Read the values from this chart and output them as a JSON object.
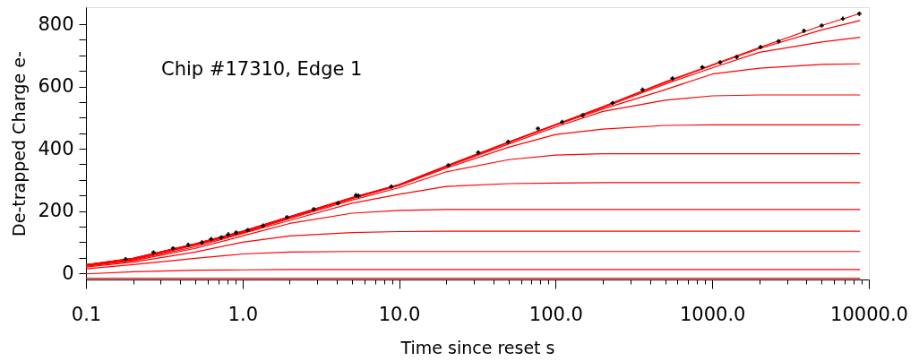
{
  "chart_data": {
    "type": "line",
    "xlabel": "Time since reset s",
    "ylabel": "De-trapped Charge e-",
    "annotations": [
      "Chip #17310, Edge 1"
    ],
    "log": "x",
    "grid": false,
    "xlim": [
      0.1,
      10000
    ],
    "ylim": [
      -20,
      855
    ],
    "xticks": [
      {
        "value": 0.1,
        "label": "0.1"
      },
      {
        "value": 0.2,
        "label": null
      },
      {
        "value": 0.3,
        "label": null
      },
      {
        "value": 0.4,
        "label": null
      },
      {
        "value": 0.5,
        "label": null
      },
      {
        "value": 0.6,
        "label": null
      },
      {
        "value": 0.7,
        "label": null
      },
      {
        "value": 0.8,
        "label": null
      },
      {
        "value": 0.9,
        "label": null
      },
      {
        "value": 1,
        "label": "1.0"
      },
      {
        "value": 2,
        "label": null
      },
      {
        "value": 3,
        "label": null
      },
      {
        "value": 4,
        "label": null
      },
      {
        "value": 5,
        "label": null
      },
      {
        "value": 6,
        "label": null
      },
      {
        "value": 7,
        "label": null
      },
      {
        "value": 8,
        "label": null
      },
      {
        "value": 9,
        "label": null
      },
      {
        "value": 10,
        "label": "10.0"
      },
      {
        "value": 20,
        "label": null
      },
      {
        "value": 30,
        "label": null
      },
      {
        "value": 40,
        "label": null
      },
      {
        "value": 50,
        "label": null
      },
      {
        "value": 60,
        "label": null
      },
      {
        "value": 70,
        "label": null
      },
      {
        "value": 80,
        "label": null
      },
      {
        "value": 90,
        "label": null
      },
      {
        "value": 100,
        "label": "100.0"
      },
      {
        "value": 200,
        "label": null
      },
      {
        "value": 300,
        "label": null
      },
      {
        "value": 400,
        "label": null
      },
      {
        "value": 500,
        "label": null
      },
      {
        "value": 600,
        "label": null
      },
      {
        "value": 700,
        "label": null
      },
      {
        "value": 800,
        "label": null
      },
      {
        "value": 900,
        "label": null
      },
      {
        "value": 1000,
        "label": "1000.0"
      },
      {
        "value": 2000,
        "label": null
      },
      {
        "value": 3000,
        "label": null
      },
      {
        "value": 4000,
        "label": null
      },
      {
        "value": 5000,
        "label": null
      },
      {
        "value": 6000,
        "label": null
      },
      {
        "value": 7000,
        "label": null
      },
      {
        "value": 8000,
        "label": null
      },
      {
        "value": 9000,
        "label": null
      },
      {
        "value": 10000,
        "label": "10000.0"
      }
    ],
    "yticks": [
      0,
      {
        "value": 50,
        "label": null
      },
      {
        "value": 100,
        "label": null
      },
      {
        "value": 150,
        "label": null
      },
      200,
      {
        "value": 250,
        "label": null
      },
      {
        "value": 300,
        "label": null
      },
      {
        "value": 350,
        "label": null
      },
      400,
      {
        "value": 450,
        "label": null
      },
      {
        "value": 500,
        "label": null
      },
      {
        "value": 550,
        "label": null
      },
      600,
      {
        "value": 650,
        "label": null
      },
      {
        "value": 700,
        "label": null
      },
      {
        "value": 750,
        "label": null
      },
      800
    ],
    "x": [
      0.1,
      0.2,
      0.5,
      1,
      2,
      5,
      10,
      20,
      50,
      100,
      200,
      500,
      1000,
      2000,
      5000,
      8800
    ],
    "series": [
      {
        "color": "#ff0000",
        "values": [
          -16,
          -16,
          -16,
          -16,
          -16,
          -16,
          -16,
          -16,
          -16,
          -16,
          -16,
          -16,
          -16,
          -16,
          -16,
          -16
        ]
      },
      {
        "color": "#ff0000",
        "values": [
          -2,
          5,
          10,
          11,
          12,
          12,
          12,
          12,
          12,
          12,
          12,
          12,
          12,
          12,
          12,
          12
        ]
      },
      {
        "color": "#ff0000",
        "values": [
          14,
          28,
          48,
          62,
          68,
          70,
          70,
          70,
          70,
          70,
          70,
          70,
          70,
          70,
          70,
          70
        ]
      },
      {
        "color": "#ff0000",
        "values": [
          20,
          36,
          68,
          100,
          120,
          131,
          134,
          135,
          135,
          135,
          135,
          135,
          135,
          135,
          135,
          135
        ]
      },
      {
        "color": "#ff0000",
        "values": [
          23,
          40,
          80,
          120,
          160,
          193,
          202,
          205,
          205,
          205,
          205,
          205,
          205,
          205,
          205,
          205
        ]
      },
      {
        "color": "#ff0000",
        "values": [
          25,
          43,
          85,
          128,
          170,
          225,
          254,
          279,
          288,
          290,
          291,
          291,
          291,
          291,
          291,
          291
        ]
      },
      {
        "color": "#ff0000",
        "values": [
          25,
          45,
          90,
          130,
          176,
          235,
          275,
          326,
          365,
          380,
          384,
          384,
          384,
          384,
          384,
          384
        ]
      },
      {
        "color": "#ff0000",
        "values": [
          26,
          46,
          92,
          132,
          179,
          240,
          282,
          338,
          405,
          446,
          463,
          475,
          477,
          477,
          477,
          477
        ]
      },
      {
        "color": "#ff0000",
        "values": [
          26,
          47,
          93,
          133,
          180,
          241,
          283,
          342,
          415,
          470,
          520,
          556,
          570,
          573,
          573,
          573
        ]
      },
      {
        "color": "#ff0000",
        "values": [
          27,
          47,
          94,
          134,
          181,
          242,
          284,
          344,
          420,
          476,
          528,
          590,
          640,
          659,
          671,
          673
        ]
      },
      {
        "color": "#ff0000",
        "values": [
          27,
          48,
          94,
          134,
          181,
          242,
          284,
          344,
          421,
          477,
          532,
          608,
          660,
          710,
          743,
          758
        ]
      },
      {
        "color": "#ff0000",
        "values": [
          27,
          48,
          95,
          135,
          182,
          243,
          285,
          345,
          422,
          478,
          534,
          613,
          668,
          722,
          782,
          812
        ]
      },
      {
        "color": "#ff0000",
        "values": [
          27,
          48,
          95,
          135,
          182,
          243,
          285,
          345,
          422,
          478,
          535,
          615,
          670,
          725,
          796,
          835
        ]
      },
      {
        "type": "scatter",
        "marker": "cross",
        "color": "#000000",
        "x": [
          0.179,
          0.27,
          0.36,
          0.45,
          0.55,
          0.63,
          0.73,
          0.81,
          0.91,
          1.08,
          1.35,
          1.92,
          2.85,
          4.07,
          5.3,
          5.5,
          8.9,
          20.6,
          32,
          49.7,
          77,
          110,
          149,
          231,
          359,
          557,
          865,
          1123,
          1432,
          2035,
          2650,
          3850,
          5000,
          6830,
          8690
        ],
        "values": [
          45,
          67,
          80,
          91,
          99,
          110,
          115,
          125,
          131,
          139,
          153,
          180,
          206,
          225,
          251,
          249,
          278,
          347,
          388,
          422,
          465,
          486,
          508,
          547,
          590,
          626,
          662,
          678,
          695,
          727,
          745,
          779,
          796,
          818,
          834
        ]
      }
    ]
  }
}
